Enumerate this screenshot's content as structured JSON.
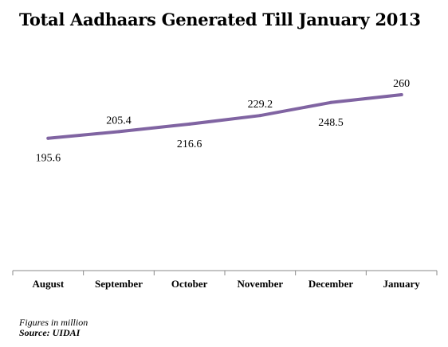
{
  "chart_data": {
    "type": "line",
    "title": "Total Aadhaars Generated Till January 2013",
    "categories": [
      "August",
      "September",
      "October",
      "November",
      "December",
      "January"
    ],
    "series": [
      {
        "values": [
          195.6,
          205.4,
          216.6,
          229.2,
          248.5,
          260
        ]
      }
    ],
    "data_labels": [
      "195.6",
      "205.4",
      "216.6",
      "229.2",
      "248.5",
      "260"
    ],
    "xlabel": "",
    "ylabel": "",
    "ylim": [
      0,
      400
    ],
    "grid": false,
    "legend": "none",
    "colors": {
      "line": "#8064A2",
      "axis": "#888888",
      "text": "#000000"
    }
  },
  "footnotes": {
    "units": "Figures in million",
    "source": "Source: UIDAI"
  }
}
